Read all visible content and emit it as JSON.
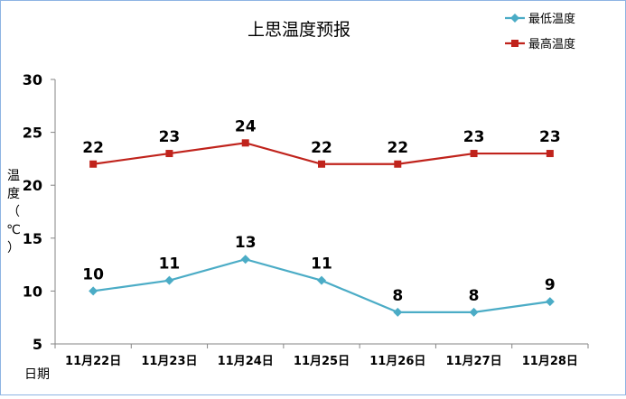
{
  "chart_data": {
    "type": "line",
    "title": "上思温度预报",
    "xlabel": "日期",
    "ylabel": "温度（℃）",
    "ylim": [
      5,
      30
    ],
    "yticks": [
      "5",
      "10",
      "15",
      "20",
      "25",
      "30"
    ],
    "categories": [
      "11月22日",
      "11月23日",
      "11月24日",
      "11月25日",
      "11月26日",
      "11月27日",
      "11月28日"
    ],
    "series": [
      {
        "name": "最低温度",
        "values": [
          10,
          11,
          13,
          11,
          8,
          8,
          9
        ],
        "color": "#4bacc6",
        "marker": "diamond"
      },
      {
        "name": "最高温度",
        "values": [
          22,
          23,
          24,
          22,
          22,
          23,
          23
        ],
        "color": "#c0231c",
        "marker": "square"
      }
    ],
    "legend": "top-right",
    "grid": false
  }
}
